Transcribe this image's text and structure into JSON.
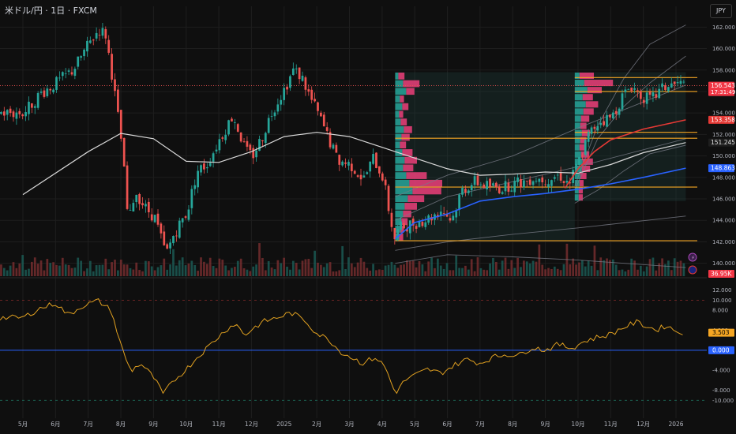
{
  "header": {
    "title": "米ドル/円 · 1日 · FXCM",
    "currency": "JPY"
  },
  "colors": {
    "background": "#0f0f0f",
    "grid": "#1e1e1e",
    "axis_text": "#b2b5be",
    "up": "#26a69a",
    "down": "#ef5350",
    "sma_white": "#d9d9d9",
    "sma_blue": "#2962ff",
    "sma_red": "#e53935",
    "band": "#787b86",
    "level": "#f5a623",
    "profile_up": "#26a69a",
    "profile_down": "#ec407a",
    "oscillator": "#e0a020",
    "zero_line": "#2962ff"
  },
  "chart_data": [
    {
      "type": "candlestick",
      "instrument": "USDJPY",
      "timeframe": "1D",
      "x_tick_labels": [
        "5月",
        "6月",
        "7月",
        "8月",
        "9月",
        "10月",
        "11月",
        "12月",
        "2025",
        "2月",
        "3月",
        "4月",
        "5月",
        "6月",
        "7月",
        "8月",
        "9月",
        "10月",
        "11月",
        "12月",
        "2026"
      ],
      "y_ticks": [
        140.0,
        142.0,
        144.0,
        146.0,
        148.0,
        150.0,
        152.0,
        154.0,
        156.0,
        158.0,
        160.0,
        162.0
      ],
      "ylim": [
        138.8,
        163.2
      ],
      "close_path": [
        {
          "m": 0,
          "v": 154.0
        },
        {
          "m": 0.5,
          "v": 155.8
        },
        {
          "m": 1.0,
          "v": 156.8
        },
        {
          "m": 1.5,
          "v": 158.0
        },
        {
          "m": 2.0,
          "v": 160.5
        },
        {
          "m": 2.3,
          "v": 161.8
        },
        {
          "m": 2.5,
          "v": 161.3
        },
        {
          "m": 2.7,
          "v": 157.5
        },
        {
          "m": 3.0,
          "v": 151.0
        },
        {
          "m": 3.2,
          "v": 143.5
        },
        {
          "m": 3.4,
          "v": 146.8
        },
        {
          "m": 3.7,
          "v": 145.2
        },
        {
          "m": 4.0,
          "v": 144.3
        },
        {
          "m": 4.35,
          "v": 140.8
        },
        {
          "m": 4.6,
          "v": 142.8
        },
        {
          "m": 5.0,
          "v": 144.8
        },
        {
          "m": 5.3,
          "v": 148.6
        },
        {
          "m": 5.6,
          "v": 149.2
        },
        {
          "m": 6.0,
          "v": 151.6
        },
        {
          "m": 6.4,
          "v": 153.8
        },
        {
          "m": 6.8,
          "v": 150.4
        },
        {
          "m": 7.0,
          "v": 150.0
        },
        {
          "m": 7.3,
          "v": 151.8
        },
        {
          "m": 7.6,
          "v": 154.2
        },
        {
          "m": 8.0,
          "v": 156.4
        },
        {
          "m": 8.25,
          "v": 158.0
        },
        {
          "m": 8.5,
          "v": 157.4
        },
        {
          "m": 8.8,
          "v": 155.2
        },
        {
          "m": 9.0,
          "v": 154.0
        },
        {
          "m": 9.3,
          "v": 151.8
        },
        {
          "m": 9.6,
          "v": 149.6
        },
        {
          "m": 10.0,
          "v": 149.2
        },
        {
          "m": 10.4,
          "v": 147.8
        },
        {
          "m": 10.7,
          "v": 149.8
        },
        {
          "m": 11.0,
          "v": 148.0
        },
        {
          "m": 11.2,
          "v": 144.5
        },
        {
          "m": 11.35,
          "v": 142.3
        },
        {
          "m": 11.5,
          "v": 143.3
        },
        {
          "m": 12.0,
          "v": 143.8
        },
        {
          "m": 12.4,
          "v": 144.2
        },
        {
          "m": 12.8,
          "v": 145.0
        },
        {
          "m": 13.1,
          "v": 144.0
        },
        {
          "m": 13.4,
          "v": 146.8
        },
        {
          "m": 13.8,
          "v": 147.6
        },
        {
          "m": 14.2,
          "v": 147.2
        },
        {
          "m": 14.6,
          "v": 147.0
        },
        {
          "m": 15.0,
          "v": 147.4
        },
        {
          "m": 15.3,
          "v": 147.6
        },
        {
          "m": 15.6,
          "v": 148.0
        },
        {
          "m": 16.0,
          "v": 147.8
        },
        {
          "m": 16.4,
          "v": 148.2
        },
        {
          "m": 16.7,
          "v": 147.4
        },
        {
          "m": 17.0,
          "v": 149.6
        },
        {
          "m": 17.3,
          "v": 152.0
        },
        {
          "m": 17.6,
          "v": 153.2
        },
        {
          "m": 18.0,
          "v": 153.6
        },
        {
          "m": 18.3,
          "v": 155.4
        },
        {
          "m": 18.6,
          "v": 156.6
        },
        {
          "m": 18.9,
          "v": 155.6
        },
        {
          "m": 19.2,
          "v": 155.2
        },
        {
          "m": 19.6,
          "v": 156.4
        },
        {
          "m": 20.0,
          "v": 156.7
        },
        {
          "m": 20.3,
          "v": 156.54
        }
      ],
      "moving_averages": [
        {
          "color": "#d9d9d9",
          "points": [
            {
              "m": 0,
              "v": 146.4
            },
            {
              "m": 2.0,
              "v": 150.4
            },
            {
              "m": 3.0,
              "v": 152.1
            },
            {
              "m": 4.0,
              "v": 151.6
            },
            {
              "m": 5.0,
              "v": 149.5
            },
            {
              "m": 6.0,
              "v": 149.4
            },
            {
              "m": 7.0,
              "v": 150.4
            },
            {
              "m": 8.0,
              "v": 151.8
            },
            {
              "m": 9.0,
              "v": 152.2
            },
            {
              "m": 10.0,
              "v": 151.8
            },
            {
              "m": 11.0,
              "v": 150.8
            },
            {
              "m": 12.0,
              "v": 149.8
            },
            {
              "m": 13.0,
              "v": 148.8
            },
            {
              "m": 14.0,
              "v": 148.2
            },
            {
              "m": 15.0,
              "v": 148.3
            },
            {
              "m": 16.0,
              "v": 148.5
            },
            {
              "m": 17.0,
              "v": 148.4
            },
            {
              "m": 18.0,
              "v": 149.2
            },
            {
              "m": 19.0,
              "v": 150.3
            },
            {
              "m": 20.3,
              "v": 151.245
            }
          ]
        },
        {
          "color": "#2962ff",
          "points": [
            {
              "m": 11.4,
              "v": 142.3
            },
            {
              "m": 12.0,
              "v": 143.8
            },
            {
              "m": 13.0,
              "v": 144.6
            },
            {
              "m": 14.0,
              "v": 145.8
            },
            {
              "m": 15.0,
              "v": 146.2
            },
            {
              "m": 16.0,
              "v": 146.5
            },
            {
              "m": 17.0,
              "v": 146.9
            },
            {
              "m": 18.0,
              "v": 147.4
            },
            {
              "m": 19.0,
              "v": 148.0
            },
            {
              "m": 20.3,
              "v": 148.863
            }
          ]
        },
        {
          "color": "#e53935",
          "points": [
            {
              "m": 16.6,
              "v": 147.0
            },
            {
              "m": 17.0,
              "v": 148.8
            },
            {
              "m": 17.5,
              "v": 150.4
            },
            {
              "m": 18.0,
              "v": 151.5
            },
            {
              "m": 19.0,
              "v": 152.5
            },
            {
              "m": 20.3,
              "v": 153.358
            }
          ]
        }
      ],
      "bands": [
        [
          {
            "m": 11.4,
            "v": 141.2
          },
          {
            "m": 13.0,
            "v": 142.0
          },
          {
            "m": 15.0,
            "v": 142.7
          },
          {
            "m": 17.0,
            "v": 143.3
          },
          {
            "m": 20.3,
            "v": 144.4
          }
        ],
        [
          {
            "m": 11.4,
            "v": 140.0
          },
          {
            "m": 13.0,
            "v": 140.8
          },
          {
            "m": 15.0,
            "v": 140.6
          },
          {
            "m": 17.0,
            "v": 140.3
          },
          {
            "m": 20.3,
            "v": 139.6
          }
        ],
        [
          {
            "m": 11.4,
            "v": 144.0
          },
          {
            "m": 13.0,
            "v": 146.2
          },
          {
            "m": 15.0,
            "v": 147.6
          },
          {
            "m": 17.0,
            "v": 149.0
          },
          {
            "m": 20.3,
            "v": 151.6
          }
        ],
        [
          {
            "m": 11.4,
            "v": 146.2
          },
          {
            "m": 13.0,
            "v": 148.2
          },
          {
            "m": 15.0,
            "v": 150.0
          },
          {
            "m": 17.0,
            "v": 152.6
          },
          {
            "m": 20.3,
            "v": 156.6
          }
        ],
        [
          {
            "m": 16.9,
            "v": 146.8
          },
          {
            "m": 17.6,
            "v": 151.6
          },
          {
            "m": 18.4,
            "v": 154.6
          },
          {
            "m": 19.2,
            "v": 156.8
          },
          {
            "m": 20.3,
            "v": 159.3
          }
        ],
        [
          {
            "m": 16.9,
            "v": 147.2
          },
          {
            "m": 17.6,
            "v": 152.8
          },
          {
            "m": 18.4,
            "v": 157.2
          },
          {
            "m": 19.2,
            "v": 160.4
          },
          {
            "m": 20.3,
            "v": 162.2
          }
        ],
        [
          {
            "m": 16.9,
            "v": 145.6
          },
          {
            "m": 17.6,
            "v": 146.8
          },
          {
            "m": 18.4,
            "v": 148.6
          },
          {
            "m": 19.2,
            "v": 150.2
          },
          {
            "m": 20.3,
            "v": 151.0
          }
        ]
      ],
      "horizontal_levels": [
        {
          "from_m": 11.4,
          "v": 151.65
        },
        {
          "from_m": 11.4,
          "v": 147.1
        },
        {
          "from_m": 11.4,
          "v": 142.1
        },
        {
          "from_m": 16.9,
          "v": 157.3
        },
        {
          "from_m": 16.9,
          "v": 156.0
        },
        {
          "from_m": 16.9,
          "v": 152.2
        }
      ],
      "volume_profiles": [
        {
          "from_m": 11.4,
          "to_m": 16.9,
          "top": 157.8,
          "bottom": 142.1,
          "rows": [
            [
              4,
              3
            ],
            [
              10,
              8
            ],
            [
              14,
              4
            ],
            [
              6,
              2
            ],
            [
              9,
              3
            ],
            [
              5,
              2
            ],
            [
              7,
              3
            ],
            [
              11,
              4
            ],
            [
              8,
              4
            ],
            [
              6,
              3
            ],
            [
              9,
              5
            ],
            [
              12,
              6
            ],
            [
              10,
              5
            ],
            [
              14,
              10
            ],
            [
              18,
              16
            ],
            [
              22,
              14
            ],
            [
              16,
              8
            ],
            [
              12,
              6
            ],
            [
              10,
              4
            ],
            [
              8,
              3
            ],
            [
              6,
              2
            ],
            [
              5,
              2
            ]
          ]
        },
        {
          "from_m": 16.9,
          "to_m": 20.3,
          "top": 157.8,
          "bottom": 145.8,
          "rows": [
            [
              6,
              7
            ],
            [
              12,
              14
            ],
            [
              16,
              7
            ],
            [
              10,
              5
            ],
            [
              14,
              6
            ],
            [
              11,
              5
            ],
            [
              8,
              4
            ],
            [
              7,
              3
            ],
            [
              9,
              4
            ],
            [
              7,
              3
            ],
            [
              6,
              3
            ],
            [
              8,
              4
            ],
            [
              10,
              5
            ],
            [
              9,
              4
            ],
            [
              7,
              3
            ],
            [
              6,
              2
            ],
            [
              5,
              2
            ],
            [
              5,
              2
            ]
          ]
        }
      ],
      "price_labels": [
        {
          "text": "156.543",
          "sub": "17:31:49",
          "v": 156.543,
          "bg": "#f23645",
          "fg": "#ffffff"
        },
        {
          "text": "153.358",
          "v": 153.358,
          "bg": "#e53935",
          "fg": "#ffffff"
        },
        {
          "text": "151.245",
          "v": 151.245,
          "bg": "#1e1e1e",
          "fg": "#e0e0e0"
        },
        {
          "text": "148.863",
          "v": 148.863,
          "bg": "#2962ff",
          "fg": "#ffffff"
        }
      ],
      "volume_label": "36.95K"
    },
    {
      "type": "line",
      "panel": "oscillator",
      "y_ticks": [
        12.0,
        10.0,
        8.0,
        4.0,
        0.0,
        -4.0,
        -8.0,
        -10.0
      ],
      "ylim": [
        -12.0,
        14.0
      ],
      "overbought": 10.0,
      "oversold": -10.0,
      "zero": 0.0,
      "series": [
        {
          "points": [
            {
              "m": 0,
              "v": 6.5
            },
            {
              "m": 0.5,
              "v": 8.3
            },
            {
              "m": 1.0,
              "v": 9.4
            },
            {
              "m": 1.4,
              "v": 7.0
            },
            {
              "m": 1.8,
              "v": 8.8
            },
            {
              "m": 2.3,
              "v": 9.9
            },
            {
              "m": 2.7,
              "v": 8.0
            },
            {
              "m": 3.0,
              "v": 1.0
            },
            {
              "m": 3.3,
              "v": -4.2
            },
            {
              "m": 3.6,
              "v": -2.6
            },
            {
              "m": 4.0,
              "v": -5.4
            },
            {
              "m": 4.3,
              "v": -8.8
            },
            {
              "m": 4.6,
              "v": -6.2
            },
            {
              "m": 5.0,
              "v": -3.8
            },
            {
              "m": 5.4,
              "v": -1.0
            },
            {
              "m": 5.8,
              "v": 1.5
            },
            {
              "m": 6.2,
              "v": 4.0
            },
            {
              "m": 6.5,
              "v": 5.4
            },
            {
              "m": 6.8,
              "v": 3.0
            },
            {
              "m": 7.1,
              "v": 4.6
            },
            {
              "m": 7.4,
              "v": 5.8
            },
            {
              "m": 7.8,
              "v": 6.5
            },
            {
              "m": 8.2,
              "v": 7.5
            },
            {
              "m": 8.6,
              "v": 6.2
            },
            {
              "m": 9.0,
              "v": 3.4
            },
            {
              "m": 9.4,
              "v": 2.0
            },
            {
              "m": 9.7,
              "v": -0.2
            },
            {
              "m": 10.0,
              "v": -1.2
            },
            {
              "m": 10.4,
              "v": -2.6
            },
            {
              "m": 10.8,
              "v": -1.4
            },
            {
              "m": 11.1,
              "v": -3.4
            },
            {
              "m": 11.4,
              "v": -8.6
            },
            {
              "m": 11.7,
              "v": -6.0
            },
            {
              "m": 12.0,
              "v": -5.0
            },
            {
              "m": 12.4,
              "v": -3.8
            },
            {
              "m": 12.8,
              "v": -4.6
            },
            {
              "m": 13.2,
              "v": -3.0
            },
            {
              "m": 13.6,
              "v": -1.8
            },
            {
              "m": 14.0,
              "v": -2.6
            },
            {
              "m": 14.4,
              "v": -1.4
            },
            {
              "m": 14.8,
              "v": -0.8
            },
            {
              "m": 15.2,
              "v": -1.0
            },
            {
              "m": 15.6,
              "v": 0.6
            },
            {
              "m": 16.0,
              "v": 0.0
            },
            {
              "m": 16.4,
              "v": 1.2
            },
            {
              "m": 16.8,
              "v": 0.4
            },
            {
              "m": 17.2,
              "v": 1.8
            },
            {
              "m": 17.6,
              "v": 2.6
            },
            {
              "m": 18.0,
              "v": 3.2
            },
            {
              "m": 18.4,
              "v": 4.6
            },
            {
              "m": 18.8,
              "v": 5.6
            },
            {
              "m": 19.1,
              "v": 4.8
            },
            {
              "m": 19.4,
              "v": 4.0
            },
            {
              "m": 19.7,
              "v": 5.0
            },
            {
              "m": 20.0,
              "v": 3.8
            },
            {
              "m": 20.3,
              "v": 3.503
            }
          ]
        }
      ],
      "value_labels": [
        {
          "text": "3.503",
          "v": 3.503,
          "bg": "#f5a623",
          "fg": "#000000"
        },
        {
          "text": "0.000",
          "v": 0.0,
          "bg": "#2962ff",
          "fg": "#ffffff"
        }
      ]
    }
  ]
}
